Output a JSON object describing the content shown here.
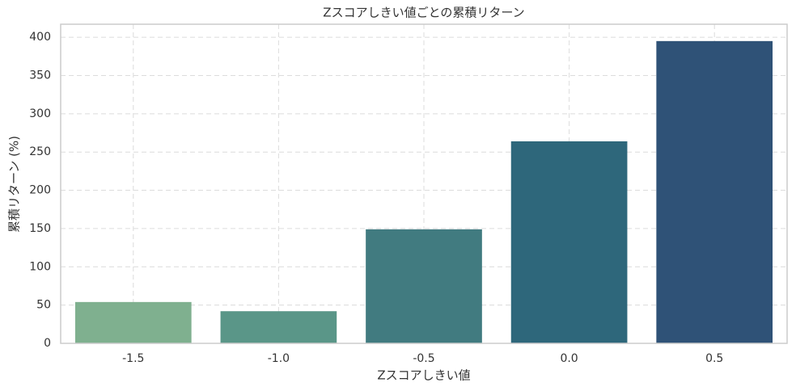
{
  "chart_data": {
    "type": "bar",
    "title": "Zスコアしきい値ごとの累積リターン",
    "x_label": "Zスコアしきい値",
    "y_label": "累積リターン (%)",
    "categories": [
      "-1.5",
      "-1.0",
      "-0.5",
      "0.0",
      "0.5"
    ],
    "values": [
      54,
      42,
      149,
      264,
      395
    ],
    "colors": [
      "#7fb08f",
      "#5a9688",
      "#417b80",
      "#2e677b",
      "#2f5277"
    ],
    "ylim": [
      0,
      417
    ],
    "yticks": [
      0,
      50,
      100,
      150,
      200,
      250,
      300,
      350,
      400
    ],
    "grid": true
  }
}
